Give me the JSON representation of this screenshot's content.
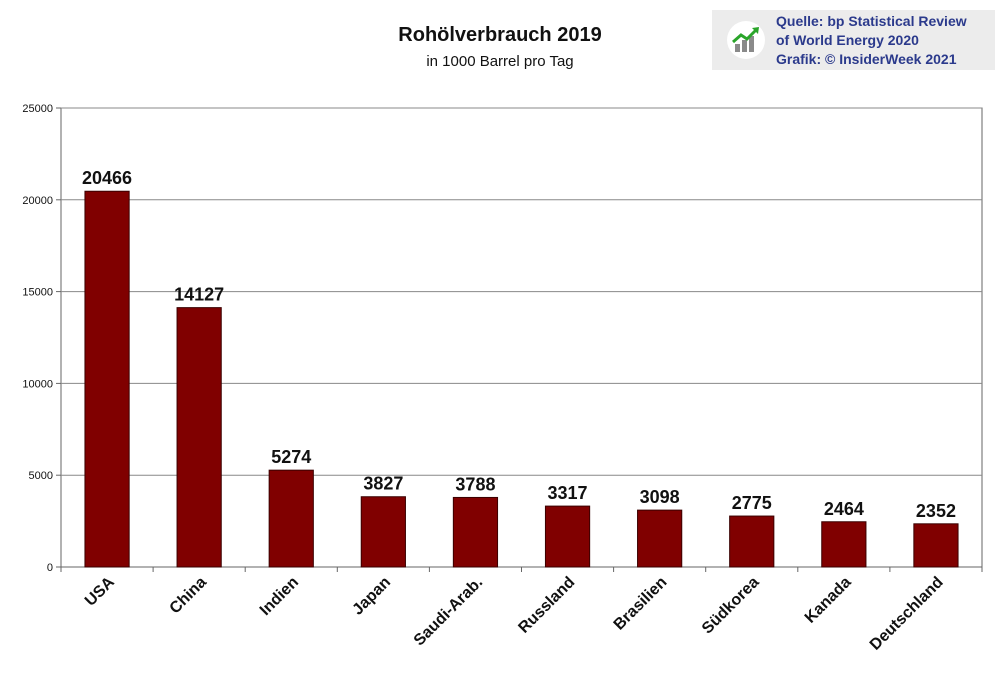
{
  "header": {
    "title": "Rohölverbrauch 2019",
    "subtitle": "in 1000 Barrel pro Tag"
  },
  "source": {
    "line1": "Quelle: bp Statistical Review",
    "line2": "of World Energy 2020",
    "line3": "Grafik: © InsiderWeek 2021",
    "icon": "trend-up-chart-icon",
    "text_color": "#2b3a8c"
  },
  "chart_data": {
    "type": "bar",
    "title": "Rohölverbrauch 2019",
    "subtitle": "in 1000 Barrel pro Tag",
    "categories": [
      "USA",
      "China",
      "Indien",
      "Japan",
      "Saudi-Arab.",
      "Russland",
      "Brasilien",
      "Südkorea",
      "Kanada",
      "Deutschland"
    ],
    "values": [
      20466,
      14127,
      5274,
      3827,
      3788,
      3317,
      3098,
      2775,
      2464,
      2352
    ],
    "ylim": [
      0,
      25000
    ],
    "yticks": [
      0,
      5000,
      10000,
      15000,
      20000,
      25000
    ],
    "grid": true,
    "bar_color": "#800000",
    "xlabel": "",
    "ylabel": ""
  }
}
